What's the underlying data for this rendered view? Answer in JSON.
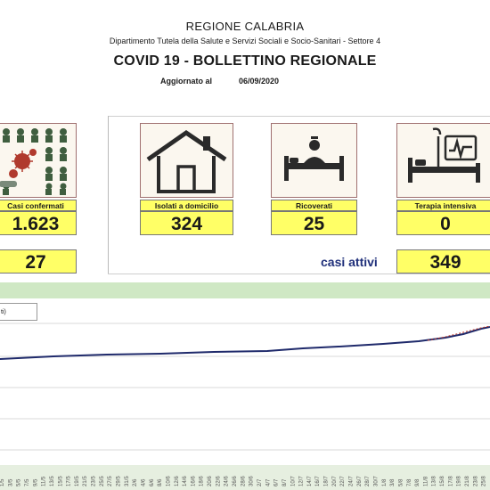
{
  "header": {
    "region": "REGIONE CALABRIA",
    "department": "Dipartimento Tutela della Salute e Servizi Sociali e Socio-Sanitari - Settore 4",
    "title": "COVID 19 - BOLLETTINO REGIONALE",
    "updated_label": "Aggiornato al",
    "updated_date": "06/09/2020"
  },
  "stats": {
    "confirmed": {
      "label": "Casi confermati",
      "value": "1.623",
      "secondary": "27",
      "icon": "people-virus-icon"
    },
    "home_isolation": {
      "label": "Isolati a domicilio",
      "value": "324",
      "icon": "house-icon"
    },
    "hospitalized": {
      "label": "Ricoverati",
      "value": "25",
      "icon": "hospital-bed-icon"
    },
    "intensive_care": {
      "label": "Terapia intensiva",
      "value": "0",
      "icon": "icu-monitor-icon"
    },
    "active_label": "casi attivi",
    "active_value": "349"
  },
  "chart": {
    "legend_text": "ti)",
    "x_tick_labels": [
      "1/5",
      "3/5",
      "5/5",
      "7/5",
      "9/5",
      "11/5",
      "13/5",
      "15/5",
      "17/5",
      "19/5",
      "21/5",
      "23/5",
      "25/5",
      "27/5",
      "29/5",
      "31/5",
      "2/6",
      "4/6",
      "6/6",
      "8/6",
      "10/6",
      "12/6",
      "14/6",
      "16/6",
      "18/6",
      "20/6",
      "22/6",
      "24/6",
      "26/6",
      "28/6",
      "30/6",
      "2/7",
      "4/7",
      "6/7",
      "8/7",
      "10/7",
      "12/7",
      "14/7",
      "16/7",
      "18/7",
      "20/7",
      "22/7",
      "24/7",
      "26/7",
      "28/7",
      "30/7",
      "1/8",
      "3/8",
      "5/8",
      "7/8",
      "9/8",
      "11/8",
      "13/8",
      "15/8",
      "17/8",
      "19/8",
      "21/8",
      "23/8",
      "25/8"
    ],
    "colors": {
      "series_main": "#1f2a6b",
      "series_trend": "#c0392b",
      "grid": "#d8d8d8"
    }
  }
}
